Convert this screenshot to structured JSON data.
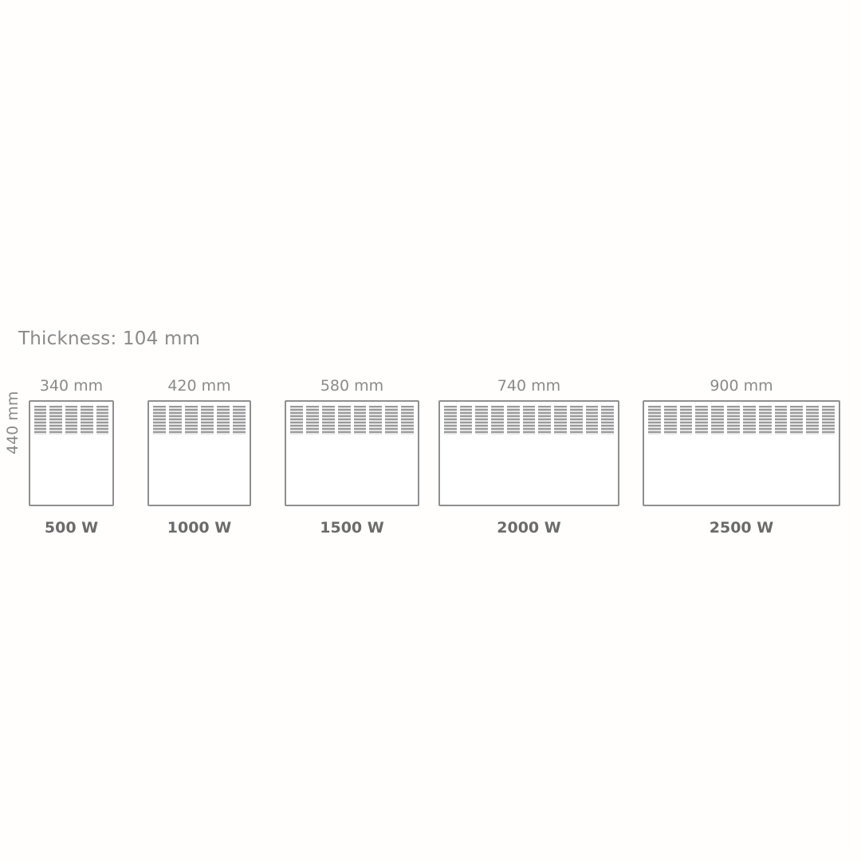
{
  "thickness_label": "Thickness: 104 mm",
  "height_label": "440 mm",
  "heaters": [
    {
      "width_label": "340 mm",
      "power_label": "500 W",
      "grille_columns": 5
    },
    {
      "width_label": "420 mm",
      "power_label": "1000 W",
      "grille_columns": 6
    },
    {
      "width_label": "580 mm",
      "power_label": "1500 W",
      "grille_columns": 8
    },
    {
      "width_label": "740 mm",
      "power_label": "2000 W",
      "grille_columns": 11
    },
    {
      "width_label": "900 mm",
      "power_label": "2500 W",
      "grille_columns": 12
    }
  ]
}
